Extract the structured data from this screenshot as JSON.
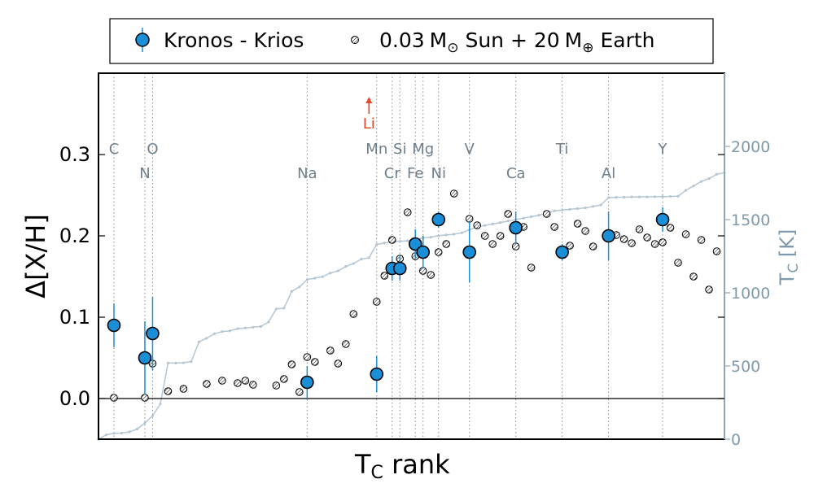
{
  "chart_data": {
    "type": "scatter",
    "xlabel": "T",
    "xlabel_sub": "C",
    "xlabel_rest": " rank",
    "ylabel": "Δ[X/H]",
    "ylabel_right": "T",
    "ylabel_right_sub": "C",
    "ylabel_right_rest": " [K]",
    "ylim": [
      -0.05,
      0.4
    ],
    "yticks": [
      "0.0",
      "0.1",
      "0.2",
      "0.3"
    ],
    "ylim_right": [
      0,
      2500
    ],
    "yticks_right": [
      "0",
      "500",
      "1000",
      "1500",
      "2000"
    ],
    "xlim": [
      0,
      81
    ],
    "legend": {
      "position": "top",
      "series1": "Kronos - Krios",
      "series2_num": "0.03",
      "series2_msun": "M",
      "series2_sun_sym": "⊙",
      "series2_mid": " Sun + 20",
      "series2_mearth": "M",
      "series2_earth_sym": "⊕",
      "series2_end": " Earth"
    },
    "element_labels": [
      {
        "label": "C",
        "rank": 2,
        "row": "upper"
      },
      {
        "label": "N",
        "rank": 6,
        "row": "lower"
      },
      {
        "label": "O",
        "rank": 7,
        "row": "upper"
      },
      {
        "label": "Na",
        "rank": 27,
        "row": "lower"
      },
      {
        "label": "Mn",
        "rank": 36,
        "row": "upper"
      },
      {
        "label": "Cr",
        "rank": 38,
        "row": "lower"
      },
      {
        "label": "Si",
        "rank": 39,
        "row": "upper"
      },
      {
        "label": "Fe",
        "rank": 41,
        "row": "lower"
      },
      {
        "label": "Mg",
        "rank": 42,
        "row": "upper"
      },
      {
        "label": "Ni",
        "rank": 44,
        "row": "lower"
      },
      {
        "label": "V",
        "rank": 48,
        "row": "upper"
      },
      {
        "label": "Ca",
        "rank": 54,
        "row": "lower"
      },
      {
        "label": "Ti",
        "rank": 60,
        "row": "upper"
      },
      {
        "label": "Al",
        "rank": 66,
        "row": "lower"
      },
      {
        "label": "Y",
        "rank": 73,
        "row": "upper"
      }
    ],
    "li_marker": {
      "label": "Li",
      "rank": 35,
      "color": "#e8482a"
    },
    "series": [
      {
        "name": "Kronos - Krios",
        "color": "#1a8ed6",
        "points": [
          {
            "x": 2,
            "y": 0.09,
            "err": 0.027
          },
          {
            "x": 6,
            "y": 0.05,
            "err": 0.045
          },
          {
            "x": 7,
            "y": 0.08,
            "err": 0.045
          },
          {
            "x": 27,
            "y": 0.02,
            "err": 0.02
          },
          {
            "x": 36,
            "y": 0.03,
            "err": 0.022
          },
          {
            "x": 38,
            "y": 0.16,
            "err": 0.015
          },
          {
            "x": 39,
            "y": 0.16,
            "err": 0.015
          },
          {
            "x": 41,
            "y": 0.19,
            "err": 0.018
          },
          {
            "x": 42,
            "y": 0.18,
            "err": 0.02
          },
          {
            "x": 44,
            "y": 0.22,
            "err": 0.01
          },
          {
            "x": 48,
            "y": 0.18,
            "err": 0.037
          },
          {
            "x": 54,
            "y": 0.21,
            "err": 0.02
          },
          {
            "x": 60,
            "y": 0.18,
            "err": 0.01
          },
          {
            "x": 66,
            "y": 0.2,
            "err": 0.03
          },
          {
            "x": 73,
            "y": 0.22,
            "err": 0.015
          }
        ]
      },
      {
        "name": "0.03 M⊙ Sun + 20 M⊕ Earth",
        "points": [
          [
            2,
            0.001
          ],
          [
            6,
            0.001
          ],
          [
            7,
            0.043
          ],
          [
            9,
            0.009
          ],
          [
            11,
            0.012
          ],
          [
            14,
            0.018
          ],
          [
            16,
            0.022
          ],
          [
            18,
            0.019
          ],
          [
            19,
            0.022
          ],
          [
            20,
            0.017
          ],
          [
            23,
            0.016
          ],
          [
            24,
            0.024
          ],
          [
            25,
            0.042
          ],
          [
            26,
            0.008
          ],
          [
            27,
            0.051
          ],
          [
            28,
            0.045
          ],
          [
            30,
            0.059
          ],
          [
            31,
            0.043
          ],
          [
            32,
            0.067
          ],
          [
            33,
            0.104
          ],
          [
            36,
            0.119
          ],
          [
            37,
            0.151
          ],
          [
            38,
            0.195
          ],
          [
            39,
            0.172
          ],
          [
            40,
            0.229
          ],
          [
            41,
            0.175
          ],
          [
            42,
            0.157
          ],
          [
            43,
            0.152
          ],
          [
            44,
            0.18
          ],
          [
            45,
            0.19
          ],
          [
            46,
            0.252
          ],
          [
            48,
            0.221
          ],
          [
            49,
            0.213
          ],
          [
            50,
            0.2
          ],
          [
            51,
            0.19
          ],
          [
            52,
            0.2
          ],
          [
            53,
            0.227
          ],
          [
            54,
            0.187
          ],
          [
            55,
            0.211
          ],
          [
            56,
            0.161
          ],
          [
            58,
            0.227
          ],
          [
            59,
            0.211
          ],
          [
            61,
            0.188
          ],
          [
            62,
            0.215
          ],
          [
            63,
            0.206
          ],
          [
            64,
            0.187
          ],
          [
            66,
            0.203
          ],
          [
            67,
            0.201
          ],
          [
            68,
            0.196
          ],
          [
            69,
            0.191
          ],
          [
            70,
            0.208
          ],
          [
            71,
            0.198
          ],
          [
            72,
            0.19
          ],
          [
            73,
            0.192
          ],
          [
            74,
            0.21
          ],
          [
            75,
            0.167
          ],
          [
            76,
            0.202
          ],
          [
            77,
            0.15
          ],
          [
            78,
            0.195
          ],
          [
            79,
            0.134
          ],
          [
            80,
            0.181
          ]
        ]
      },
      {
        "name": "T_C",
        "color": "#b5c6d2",
        "axis": "right",
        "points": [
          [
            0,
            0
          ],
          [
            1,
            30
          ],
          [
            2,
            40
          ],
          [
            3,
            42
          ],
          [
            4,
            50
          ],
          [
            5,
            70
          ],
          [
            6,
            110
          ],
          [
            7,
            160
          ],
          [
            8,
            240
          ],
          [
            9,
            520
          ],
          [
            10,
            520
          ],
          [
            11,
            522
          ],
          [
            12,
            530
          ],
          [
            13,
            665
          ],
          [
            14,
            690
          ],
          [
            15,
            720
          ],
          [
            16,
            735
          ],
          [
            17,
            740
          ],
          [
            18,
            755
          ],
          [
            19,
            760
          ],
          [
            20,
            765
          ],
          [
            21,
            770
          ],
          [
            22,
            800
          ],
          [
            23,
            890
          ],
          [
            24,
            895
          ],
          [
            25,
            1010
          ],
          [
            26,
            1040
          ],
          [
            27,
            1090
          ],
          [
            28,
            1100
          ],
          [
            29,
            1110
          ],
          [
            30,
            1135
          ],
          [
            31,
            1150
          ],
          [
            32,
            1180
          ],
          [
            33,
            1200
          ],
          [
            34,
            1230
          ],
          [
            35,
            1240
          ],
          [
            36,
            1330
          ],
          [
            37,
            1340
          ],
          [
            38,
            1350
          ],
          [
            39,
            1352
          ],
          [
            40,
            1355
          ],
          [
            41,
            1365
          ],
          [
            42,
            1375
          ],
          [
            43,
            1380
          ],
          [
            44,
            1390
          ],
          [
            45,
            1395
          ],
          [
            46,
            1400
          ],
          [
            47,
            1410
          ],
          [
            48,
            1430
          ],
          [
            49,
            1450
          ],
          [
            50,
            1460
          ],
          [
            51,
            1470
          ],
          [
            52,
            1480
          ],
          [
            53,
            1490
          ],
          [
            54,
            1500
          ],
          [
            55,
            1510
          ],
          [
            56,
            1520
          ],
          [
            57,
            1530
          ],
          [
            58,
            1545
          ],
          [
            59,
            1560
          ],
          [
            60,
            1565
          ],
          [
            61,
            1570
          ],
          [
            62,
            1575
          ],
          [
            63,
            1580
          ],
          [
            64,
            1590
          ],
          [
            65,
            1600
          ],
          [
            66,
            1650
          ],
          [
            67,
            1652
          ],
          [
            68,
            1653
          ],
          [
            69,
            1655
          ],
          [
            70,
            1655
          ],
          [
            71,
            1655
          ],
          [
            72,
            1656
          ],
          [
            73,
            1657
          ],
          [
            74,
            1658
          ],
          [
            75,
            1660
          ],
          [
            76,
            1700
          ],
          [
            77,
            1730
          ],
          [
            78,
            1760
          ],
          [
            79,
            1780
          ],
          [
            80,
            1810
          ],
          [
            81,
            1820
          ]
        ]
      }
    ]
  }
}
